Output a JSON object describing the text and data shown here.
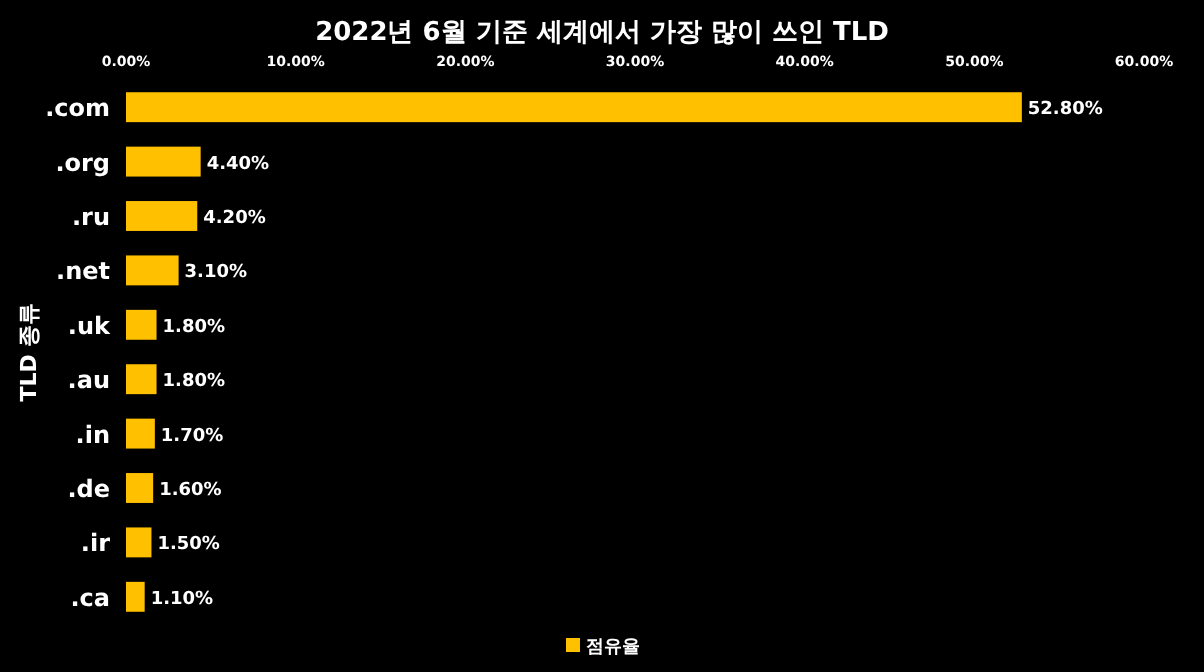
{
  "chart_data": {
    "type": "bar",
    "orientation": "horizontal",
    "title": "2022년 6월 기준 세계에서 가장 많이 쓰인 TLD",
    "ylabel": "TLD 종류",
    "categories": [
      ".com",
      ".org",
      ".ru",
      ".net",
      ".uk",
      ".au",
      ".in",
      ".de",
      ".ir",
      ".ca"
    ],
    "series": [
      {
        "name": "점유율",
        "color": "#ffc000",
        "values": [
          52.8,
          4.4,
          4.2,
          3.1,
          1.8,
          1.8,
          1.7,
          1.6,
          1.5,
          1.1
        ]
      }
    ],
    "value_labels": [
      "52.80%",
      "4.40%",
      "4.20%",
      "3.10%",
      "1.80%",
      "1.80%",
      "1.70%",
      "1.60%",
      "1.50%",
      "1.10%"
    ],
    "xlim": [
      0,
      60
    ],
    "xticks": [
      {
        "value": 0,
        "label": "0.00%"
      },
      {
        "value": 10,
        "label": "10.00%"
      },
      {
        "value": 20,
        "label": "20.00%"
      },
      {
        "value": 30,
        "label": "30.00%"
      },
      {
        "value": 40,
        "label": "40.00%"
      },
      {
        "value": 50,
        "label": "50.00%"
      },
      {
        "value": 60,
        "label": "60.00%"
      }
    ],
    "legend": "bottom"
  }
}
